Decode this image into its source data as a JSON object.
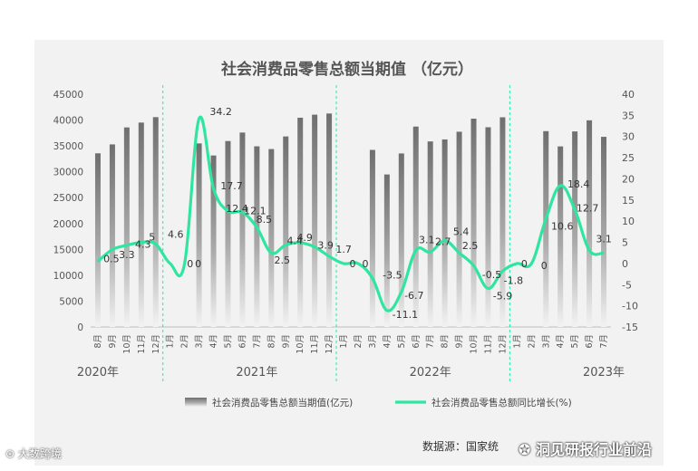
{
  "chart_data": {
    "type": "bar+line",
    "title": "社会消费品零售总额当期值 （亿元）",
    "categories": [
      "8月",
      "9月",
      "10月",
      "11月",
      "12月",
      "1月",
      "2月",
      "3月",
      "4月",
      "5月",
      "6月",
      "7月",
      "8月",
      "9月",
      "10月",
      "11月",
      "12月",
      "1月",
      "2月",
      "3月",
      "4月",
      "5月",
      "6月",
      "7月",
      "8月",
      "9月",
      "10月",
      "11月",
      "12月",
      "1月",
      "2月",
      "3月",
      "4月",
      "5月",
      "6月",
      "7月"
    ],
    "year_labels": [
      {
        "label": "2020年",
        "index": 0
      },
      {
        "label": "2021年",
        "index": 11
      },
      {
        "label": "2022年",
        "index": 23
      },
      {
        "label": "2023年",
        "index": 35
      }
    ],
    "year_dividers_after_index": [
      4,
      16,
      28
    ],
    "series": [
      {
        "name": "社会消费品零售总额当期值(亿元)",
        "type": "bar",
        "axis": "left",
        "values": [
          33571,
          35295,
          38576,
          39514,
          40566,
          null,
          null,
          35484,
          33153,
          35945,
          37586,
          34925,
          34395,
          36833,
          40454,
          41043,
          41269,
          null,
          null,
          34233,
          29483,
          33547,
          38742,
          35870,
          36258,
          37745,
          40271,
          38615,
          40542,
          null,
          null,
          37855,
          34910,
          37803,
          39951,
          36761
        ]
      },
      {
        "name": "社会消费品零售总额同比增长(%)",
        "type": "line",
        "axis": "right",
        "color": "#2ee6a0",
        "values": [
          0.5,
          3.3,
          4.3,
          5.0,
          4.6,
          0,
          0,
          34.2,
          17.7,
          12.4,
          12.1,
          8.5,
          2.5,
          4.4,
          4.9,
          3.9,
          1.7,
          0,
          0,
          -3.5,
          -11.1,
          -6.7,
          3.1,
          2.7,
          5.4,
          2.5,
          -0.5,
          -5.9,
          -1.8,
          0,
          0,
          10.6,
          18.4,
          12.7,
          3.1,
          2.5
        ]
      }
    ],
    "data_labels": [
      {
        "index": 1,
        "text": "0.5",
        "dx": -1,
        "dy": 14
      },
      {
        "index": 2,
        "text": "3.3",
        "dx": 0,
        "dy": 14
      },
      {
        "index": 3,
        "text": "4.3",
        "dx": 2,
        "dy": 6
      },
      {
        "index": 4,
        "text": "5",
        "dx": -4,
        "dy": -4
      },
      {
        "index": 4,
        "text": "4.6",
        "dx": 22,
        "dy": -7
      },
      {
        "index": 5,
        "text": "0",
        "dx": 22,
        "dy": 4
      },
      {
        "index": 6,
        "text": "0",
        "dx": 15,
        "dy": 4
      },
      {
        "index": 7,
        "text": "34.2",
        "dx": 24,
        "dy": -4
      },
      {
        "index": 8,
        "text": "17.7",
        "dx": 20,
        "dy": 1
      },
      {
        "index": 9,
        "text": "12.4",
        "dx": 10,
        "dy": 1
      },
      {
        "index": 10,
        "text": "12.1",
        "dx": 14,
        "dy": 2
      },
      {
        "index": 11,
        "text": "8.5",
        "dx": 8,
        "dy": -5
      },
      {
        "index": 12,
        "text": "2.5",
        "dx": 12,
        "dy": 12
      },
      {
        "index": 13,
        "text": "4.4",
        "dx": 10,
        "dy": -1
      },
      {
        "index": 14,
        "text": "4.9",
        "dx": 5,
        "dy": -2
      },
      {
        "index": 15,
        "text": "3.9",
        "dx": 12,
        "dy": 2
      },
      {
        "index": 16,
        "text": "1.7",
        "dx": 16,
        "dy": -4
      },
      {
        "index": 17,
        "text": "0",
        "dx": 10,
        "dy": 4
      },
      {
        "index": 18,
        "text": "0",
        "dx": 8,
        "dy": 4
      },
      {
        "index": 19,
        "text": "-3.5",
        "dx": 22,
        "dy": 0
      },
      {
        "index": 20,
        "text": "-11.1",
        "dx": 20,
        "dy": 8
      },
      {
        "index": 21,
        "text": "-6.7",
        "dx": 14,
        "dy": 8
      },
      {
        "index": 22,
        "text": "3.1",
        "dx": 12,
        "dy": -8
      },
      {
        "index": 23,
        "text": "2.7",
        "dx": 14,
        "dy": -8
      },
      {
        "index": 24,
        "text": "5.4",
        "dx": 18,
        "dy": -6
      },
      {
        "index": 25,
        "text": "2.5",
        "dx": 12,
        "dy": -4
      },
      {
        "index": 26,
        "text": "-0.5",
        "dx": 20,
        "dy": 14
      },
      {
        "index": 27,
        "text": "-5.9",
        "dx": 16,
        "dy": 12
      },
      {
        "index": 28,
        "text": "-1.8",
        "dx": 12,
        "dy": 14
      },
      {
        "index": 29,
        "text": "0",
        "dx": 8,
        "dy": 4
      },
      {
        "index": 30,
        "text": "0",
        "dx": 14,
        "dy": 6
      },
      {
        "index": 31,
        "text": "10.6",
        "dx": 18,
        "dy": 12
      },
      {
        "index": 32,
        "text": "18.4",
        "dx": 20,
        "dy": 2
      },
      {
        "index": 33,
        "text": "12.7",
        "dx": 14,
        "dy": 2
      },
      {
        "index": 34,
        "text": "3.1",
        "dx": 16,
        "dy": -9
      }
    ],
    "y_left": {
      "min": 0,
      "max": 45000,
      "step": 5000,
      "ticks": [
        "0",
        "5000",
        "10000",
        "15000",
        "20000",
        "25000",
        "30000",
        "35000",
        "40000",
        "45000"
      ]
    },
    "y_right": {
      "min": -15,
      "max": 40,
      "step": 5,
      "ticks": [
        "-15",
        "-10",
        "-5",
        "0",
        "5",
        "10",
        "15",
        "20",
        "25",
        "30",
        "35",
        "40"
      ]
    },
    "grid": false,
    "legend_placement": "bottom"
  },
  "footer": {
    "source": "数据源：国家统",
    "watermark_right": "洞见研报行业前沿",
    "watermark_left": "大数跨境"
  }
}
